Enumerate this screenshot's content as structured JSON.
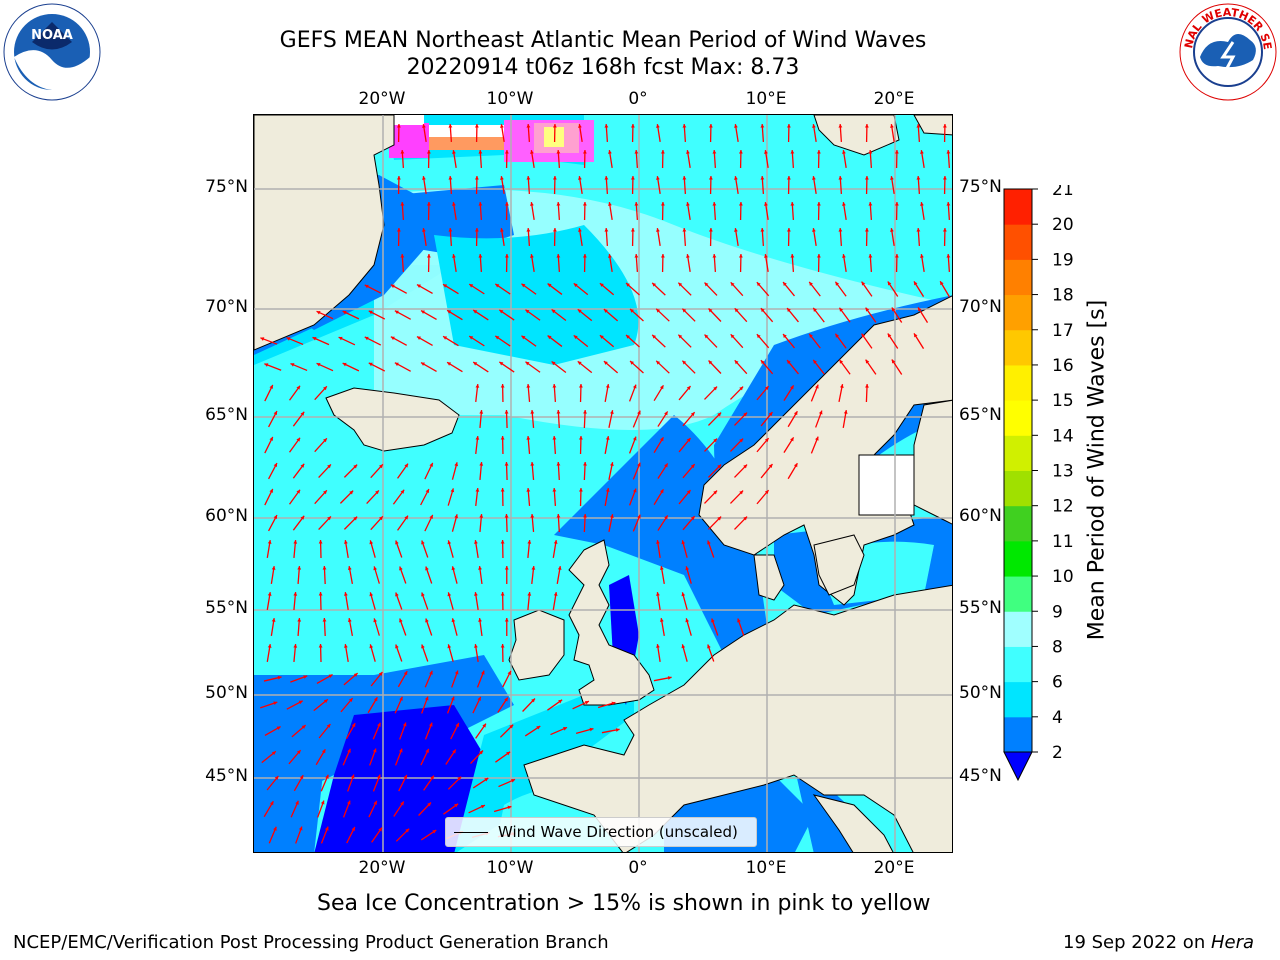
{
  "title": {
    "line1": "GEFS MEAN Northeast Atlantic Mean Period of Wind Waves",
    "line2": "20220914 t06z 168h fcst   Max: 8.73"
  },
  "logos": {
    "left": "NOAA",
    "left_ring": "NATIONAL OCEANIC AND ATMOSPHERIC ADMINISTRATION · U.S. DEPARTMENT OF COMMERCE",
    "right_ring": "NATIONAL WEATHER SERVICE"
  },
  "map": {
    "lon_ticks": [
      "20°W",
      "10°W",
      "0°",
      "10°E",
      "20°E"
    ],
    "lon_values": [
      -20,
      -10,
      0,
      10,
      20
    ],
    "lat_ticks": [
      "75°N",
      "70°N",
      "65°N",
      "60°N",
      "55°N",
      "50°N",
      "45°N"
    ],
    "lat_values": [
      75,
      70,
      65,
      60,
      55,
      50,
      45
    ],
    "legend_label": "Wind Wave Direction (unscaled)",
    "colors": {
      "land": "#efecdc",
      "coast": "#000000",
      "grid": "#b0b0b0",
      "arrow": "#ff0000"
    }
  },
  "colorbar": {
    "label": "Mean Period of Wind Waves [s]",
    "ticks": [
      "2",
      "4",
      "6",
      "8",
      "9",
      "10",
      "11",
      "12",
      "13",
      "14",
      "15",
      "16",
      "17",
      "18",
      "19",
      "20",
      "21"
    ],
    "levels": [
      2,
      4,
      6,
      8,
      9,
      10,
      11,
      12,
      13,
      14,
      15,
      16,
      17,
      18,
      19,
      20,
      21
    ],
    "colors": [
      "#0080ff",
      "#00e5ff",
      "#40ffff",
      "#a0ffff",
      "#40ff80",
      "#00e800",
      "#40d020",
      "#a0e000",
      "#d0f000",
      "#ffff00",
      "#fff000",
      "#ffc800",
      "#ffa000",
      "#ff8000",
      "#ff5000",
      "#ff2000"
    ],
    "extend_color": "#0000ff"
  },
  "caption": "Sea Ice Concentration > 15% is shown in pink to yellow",
  "footer": {
    "left": "NCEP/EMC/Verification Post Processing Product Generation Branch",
    "right_prefix": "19 Sep 2022 on ",
    "right_machine": "Hera"
  }
}
